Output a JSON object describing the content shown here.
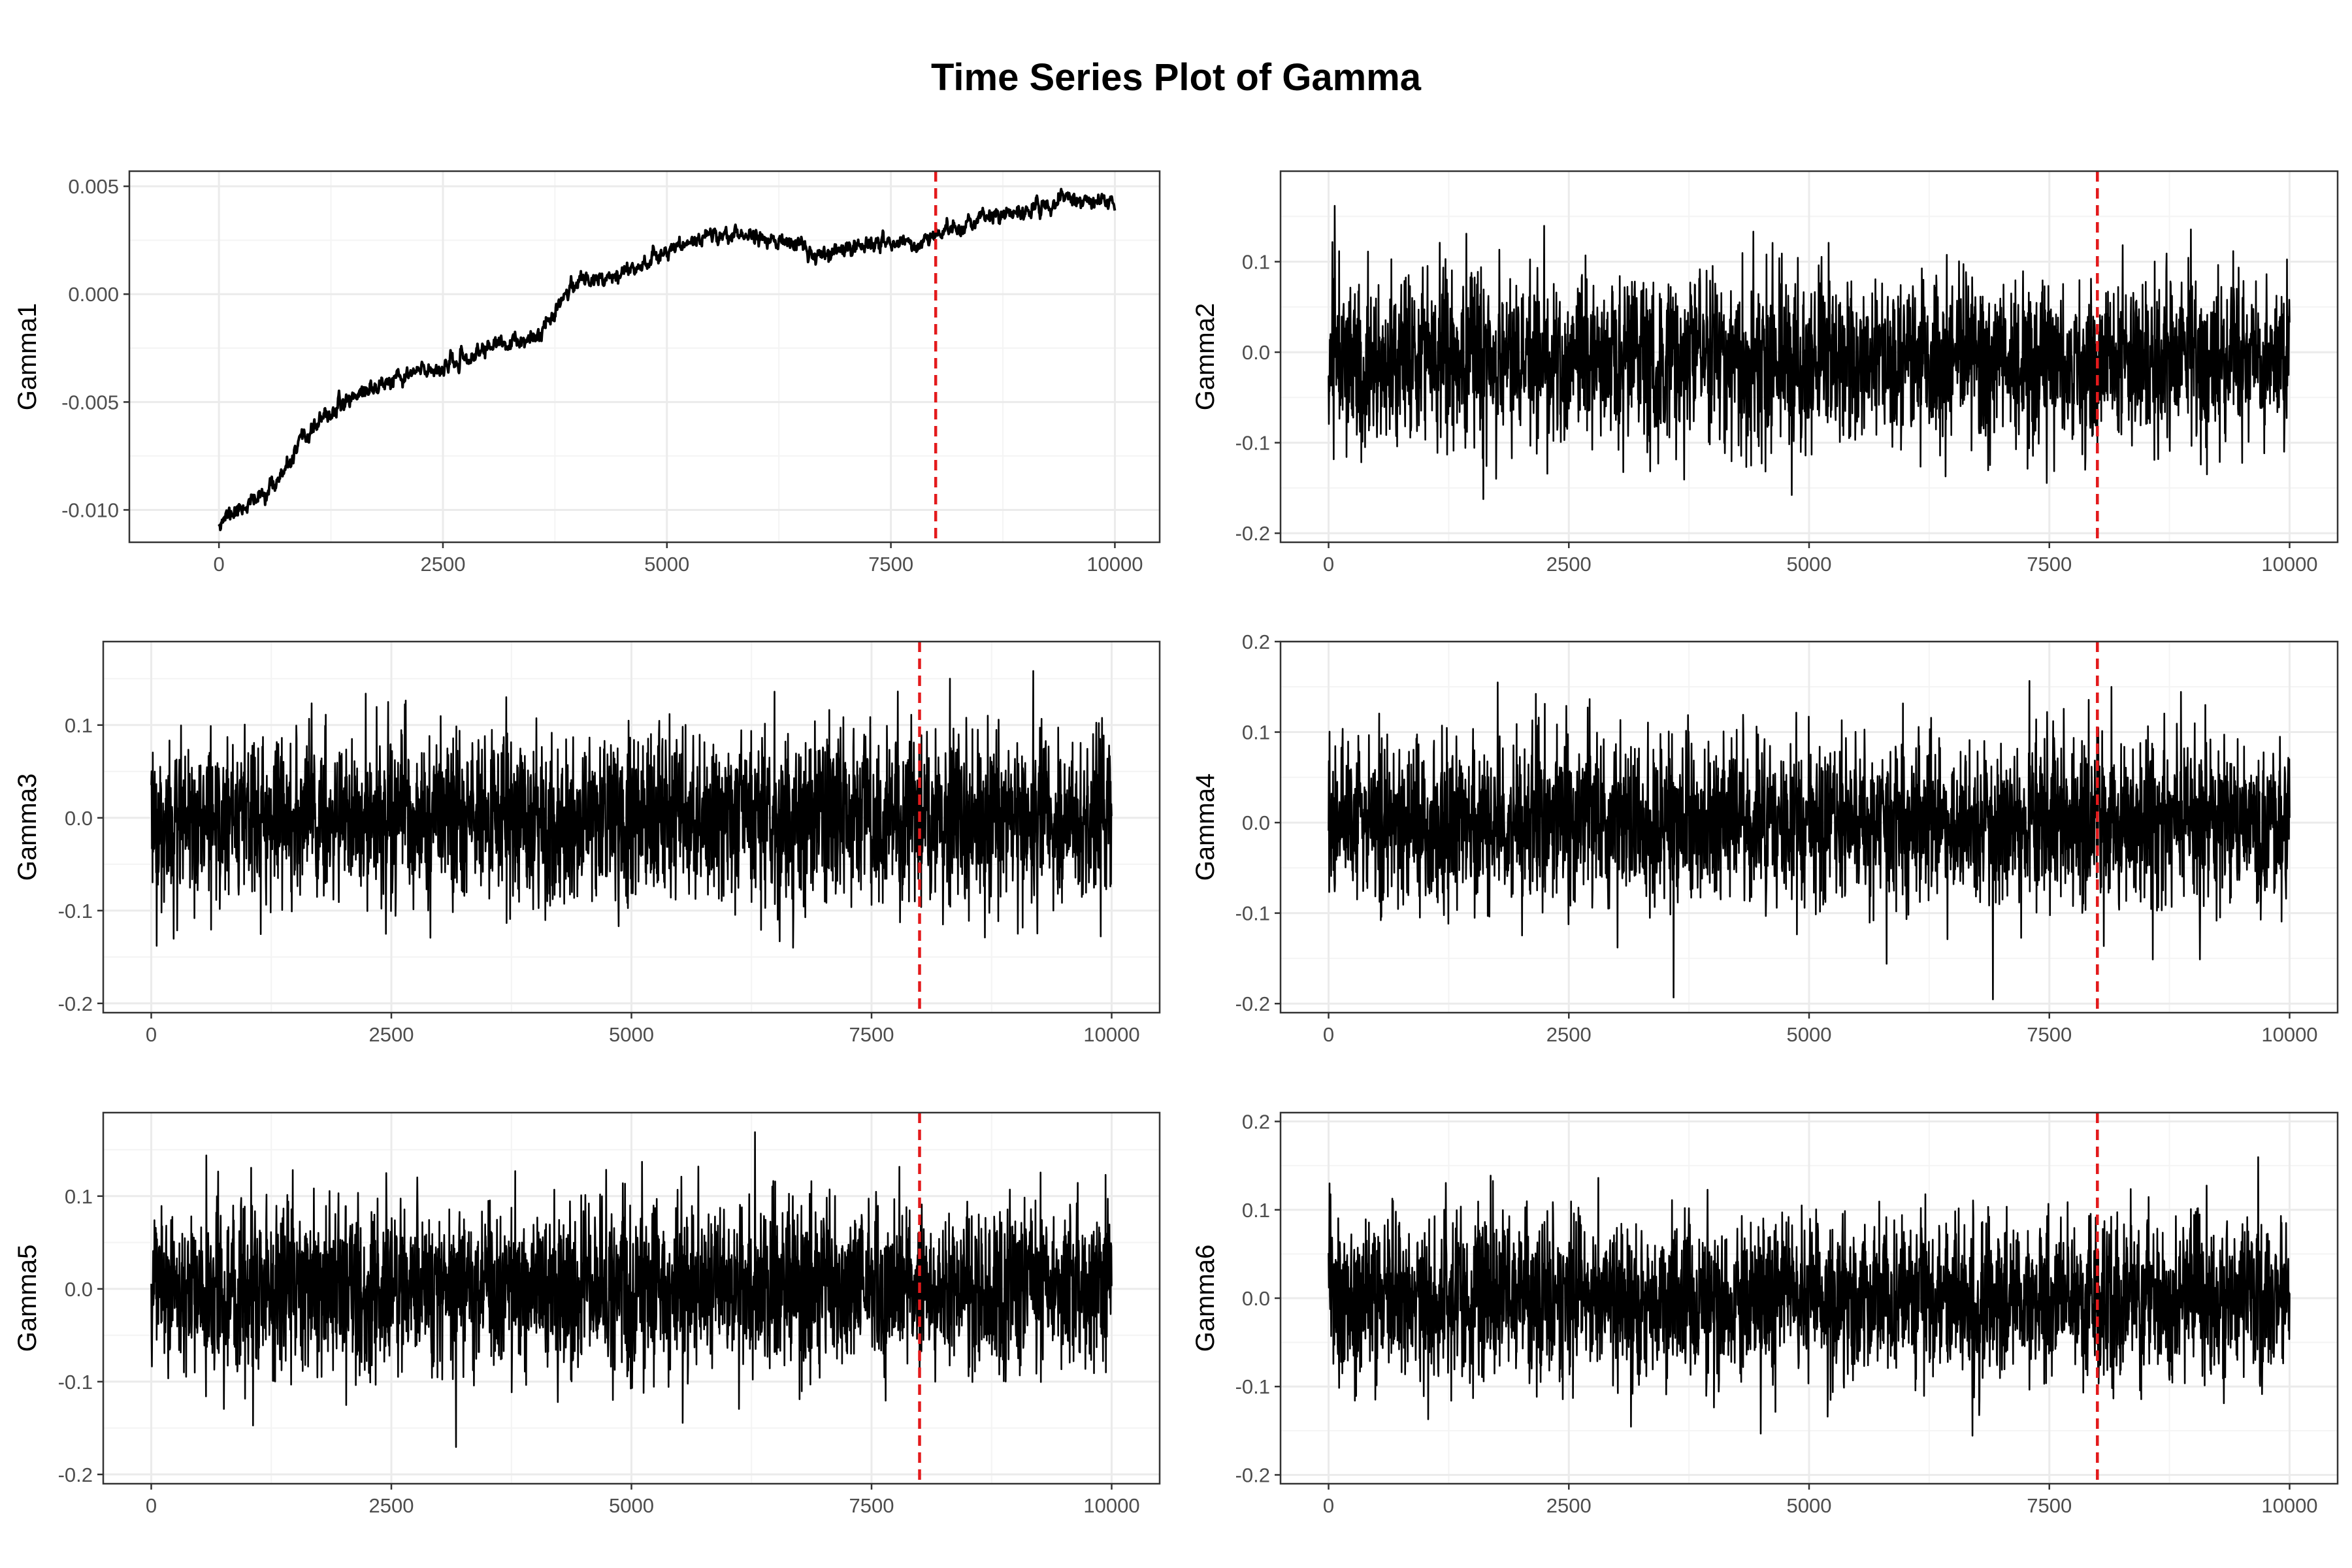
{
  "title": "Time Series Plot of Gamma",
  "colors": {
    "line": "#000000",
    "marker": "#e31a1c",
    "grid": "#ebebeb",
    "border": "#333333"
  },
  "chart_data": [
    {
      "type": "line",
      "ylabel": "Gamma1",
      "xlim": [
        -1000,
        10500
      ],
      "ylim": [
        -0.0115,
        0.0057
      ],
      "xticks": [
        0,
        2500,
        5000,
        7500,
        10000
      ],
      "yticks": [
        -0.01,
        -0.005,
        0.0,
        0.005
      ],
      "ytick_labels": [
        "-0.010",
        "-0.005",
        "0.000",
        "0.005"
      ],
      "vline_x": 8000,
      "trend": {
        "x": [
          0,
          250,
          500,
          750,
          900,
          1100,
          1500,
          1800,
          2000,
          2200,
          2500,
          2800,
          3000,
          3500,
          3600,
          3800,
          4000,
          4500,
          5000,
          5500,
          6000,
          6500,
          6700,
          7000,
          7500,
          7800,
          8000,
          8500,
          9000,
          9500,
          10000
        ],
        "y": [
          -0.0105,
          -0.0099,
          -0.0093,
          -0.0082,
          -0.007,
          -0.006,
          -0.0047,
          -0.0042,
          -0.004,
          -0.0036,
          -0.0034,
          -0.003,
          -0.0024,
          -0.0022,
          -0.0017,
          -0.0003,
          0.0006,
          0.001,
          0.002,
          0.0028,
          0.0027,
          0.0022,
          0.0017,
          0.0022,
          0.0025,
          0.0023,
          0.0027,
          0.0035,
          0.0038,
          0.0045,
          0.0042
        ]
      },
      "noise_sd": 0.00015,
      "seed": 11
    },
    {
      "type": "line",
      "ylabel": "Gamma2",
      "xlim": [
        -500,
        10500
      ],
      "ylim": [
        -0.21,
        0.2
      ],
      "xticks": [
        0,
        2500,
        5000,
        7500,
        10000
      ],
      "yticks": [
        -0.2,
        -0.1,
        0.0,
        0.1
      ],
      "ytick_labels": [
        "-0.2",
        "-0.1",
        "0.0",
        "0.1"
      ],
      "vline_x": 8000,
      "n_points": 10000,
      "mean": -0.01,
      "sd": 0.045,
      "seed": 2
    },
    {
      "type": "line",
      "ylabel": "Gamma3",
      "xlim": [
        -500,
        10500
      ],
      "ylim": [
        -0.21,
        0.19
      ],
      "xticks": [
        0,
        2500,
        5000,
        7500,
        10000
      ],
      "yticks": [
        -0.2,
        -0.1,
        0.0,
        0.1
      ],
      "ytick_labels": [
        "-0.2",
        "-0.1",
        "0.0",
        "0.1"
      ],
      "vline_x": 8000,
      "n_points": 10000,
      "mean": 0.0,
      "sd": 0.045,
      "seed": 3
    },
    {
      "type": "line",
      "ylabel": "Gamma4",
      "xlim": [
        -500,
        10500
      ],
      "ylim": [
        -0.21,
        0.2
      ],
      "xticks": [
        0,
        2500,
        5000,
        7500,
        10000
      ],
      "yticks": [
        -0.2,
        -0.1,
        0.0,
        0.1,
        0.2
      ],
      "ytick_labels": [
        "-0.2",
        "-0.1",
        "0.0",
        "0.1",
        "0.2"
      ],
      "vline_x": 8000,
      "n_points": 10000,
      "mean": 0.0,
      "sd": 0.045,
      "seed": 4
    },
    {
      "type": "line",
      "ylabel": "Gamma5",
      "xlim": [
        -500,
        10500
      ],
      "ylim": [
        -0.21,
        0.19
      ],
      "xticks": [
        0,
        2500,
        5000,
        7500,
        10000
      ],
      "yticks": [
        -0.2,
        -0.1,
        0.0,
        0.1
      ],
      "ytick_labels": [
        "-0.2",
        "-0.1",
        "0.0",
        "0.1"
      ],
      "vline_x": 8000,
      "n_points": 10000,
      "mean": 0.0,
      "sd": 0.045,
      "seed": 5
    },
    {
      "type": "line",
      "ylabel": "Gamma6",
      "xlim": [
        -500,
        10500
      ],
      "ylim": [
        -0.21,
        0.21
      ],
      "xticks": [
        0,
        2500,
        5000,
        7500,
        10000
      ],
      "yticks": [
        -0.2,
        -0.1,
        0.0,
        0.1,
        0.2
      ],
      "ytick_labels": [
        "-0.2",
        "-0.1",
        "0.0",
        "0.1",
        "0.2"
      ],
      "vline_x": 8000,
      "n_points": 10000,
      "mean": 0.0,
      "sd": 0.045,
      "seed": 6
    }
  ]
}
